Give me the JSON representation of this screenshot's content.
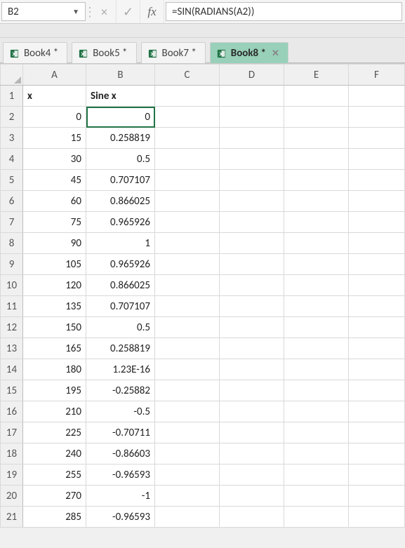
{
  "formula_bar": {
    "name_box": "B2",
    "cancel_glyph": "×",
    "enter_glyph": "✓",
    "fx_label": "fx",
    "formula": "=SIN(RADIANS(A2))"
  },
  "workbook_tabs": [
    {
      "label": "Book4 *",
      "active": false
    },
    {
      "label": "Book5 *",
      "active": false
    },
    {
      "label": "Book7 *",
      "active": false
    },
    {
      "label": "Book8 *",
      "active": true
    }
  ],
  "columns": [
    "A",
    "B",
    "C",
    "D",
    "E",
    "F"
  ],
  "selected_cell": "B2",
  "header_row": {
    "A": "x",
    "B": "Sine x"
  },
  "data_rows": [
    {
      "n": 2,
      "A": "0",
      "B": "0"
    },
    {
      "n": 3,
      "A": "15",
      "B": "0.258819"
    },
    {
      "n": 4,
      "A": "30",
      "B": "0.5"
    },
    {
      "n": 5,
      "A": "45",
      "B": "0.707107"
    },
    {
      "n": 6,
      "A": "60",
      "B": "0.866025"
    },
    {
      "n": 7,
      "A": "75",
      "B": "0.965926"
    },
    {
      "n": 8,
      "A": "90",
      "B": "1"
    },
    {
      "n": 9,
      "A": "105",
      "B": "0.965926"
    },
    {
      "n": 10,
      "A": "120",
      "B": "0.866025"
    },
    {
      "n": 11,
      "A": "135",
      "B": "0.707107"
    },
    {
      "n": 12,
      "A": "150",
      "B": "0.5"
    },
    {
      "n": 13,
      "A": "165",
      "B": "0.258819"
    },
    {
      "n": 14,
      "A": "180",
      "B": "1.23E-16"
    },
    {
      "n": 15,
      "A": "195",
      "B": "-0.25882"
    },
    {
      "n": 16,
      "A": "210",
      "B": "-0.5"
    },
    {
      "n": 17,
      "A": "225",
      "B": "-0.70711"
    },
    {
      "n": 18,
      "A": "240",
      "B": "-0.86603"
    },
    {
      "n": 19,
      "A": "255",
      "B": "-0.96593"
    },
    {
      "n": 20,
      "A": "270",
      "B": "-1"
    },
    {
      "n": 21,
      "A": "285",
      "B": "-0.96593"
    }
  ],
  "colors": {
    "accent": "#217346",
    "active_tab_bg": "#98d0b9",
    "grid_border": "#d9d9d9",
    "header_bg": "#f0f0f0"
  }
}
